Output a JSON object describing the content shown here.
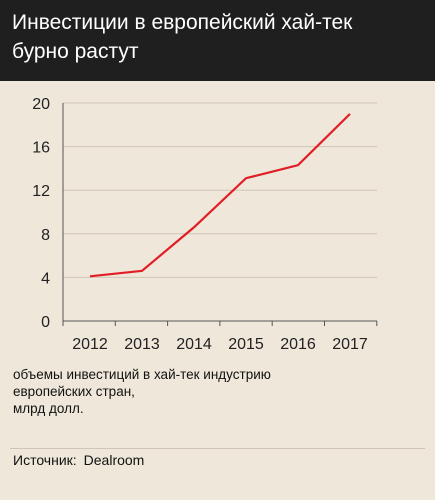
{
  "header": {
    "title": "Инвестиции в европейский хай-тек бурно растут"
  },
  "note": "объемы инвестиций в хай-тек индустрию\nевропейских стран,\nмлрд долл.",
  "source": {
    "label": "Источник:",
    "value": "Dealroom"
  },
  "chart_data": {
    "type": "line",
    "categories": [
      "2012",
      "2013",
      "2014",
      "2015",
      "2016",
      "2017"
    ],
    "series": [
      {
        "values": [
          4.1,
          4.6,
          8.6,
          13.1,
          14.3,
          19.0
        ]
      }
    ],
    "title": "Инвестиции в европейский хай-тек бурно растут",
    "xlabel": "",
    "ylabel": "",
    "ylim": [
      0,
      20
    ],
    "yticks": [
      0,
      4,
      8,
      12,
      16,
      20
    ],
    "grid": true,
    "line_color": "#e11e26",
    "grid_color": "#cfc6b8",
    "axis_color": "#555555"
  }
}
